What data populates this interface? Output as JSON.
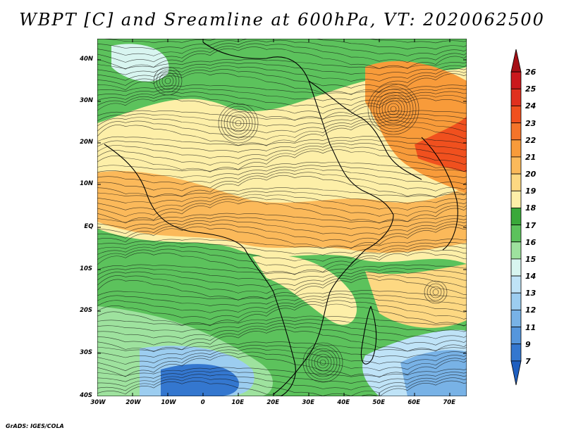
{
  "title": "WBPT [C] and Sreamline at 600hPa, VT: 2020062500",
  "credit": "GrADS: IGES/COLA",
  "lat_labels": [
    "40N",
    "30N",
    "20N",
    "10N",
    "EQ",
    "10S",
    "20S",
    "30S",
    "40S"
  ],
  "lon_labels": [
    "30W",
    "20W",
    "10W",
    "0",
    "10E",
    "20E",
    "30E",
    "40E",
    "50E",
    "60E",
    "70E"
  ],
  "colorbar": {
    "labels": [
      "26",
      "25",
      "24",
      "23",
      "22",
      "21",
      "20",
      "19",
      "18",
      "17",
      "16",
      "15",
      "14",
      "13",
      "12",
      "11",
      "9",
      "7"
    ],
    "colors": [
      "#a50f15",
      "#cb181d",
      "#e0301e",
      "#f0501e",
      "#f4742a",
      "#f89b3a",
      "#fbb95a",
      "#fdd882",
      "#fdefa8",
      "#3aa83a",
      "#5cc25c",
      "#9ee29e",
      "#d8f5f0",
      "#bfe3f7",
      "#9ccdf0",
      "#78b2e6",
      "#5596dc",
      "#3477cf",
      "#1f5fc0"
    ]
  },
  "color_scale": {
    "map_bands": [
      "#1f5fc0",
      "#3477cf",
      "#5596dc",
      "#78b2e6",
      "#9ccdf0",
      "#bfe3f7",
      "#d8f5f0",
      "#9ee29e",
      "#5cc25c",
      "#3aa83a",
      "#fdefa8",
      "#fdd882",
      "#fbb95a",
      "#f89b3a",
      "#f4742a",
      "#f0501e",
      "#e0301e"
    ]
  }
}
